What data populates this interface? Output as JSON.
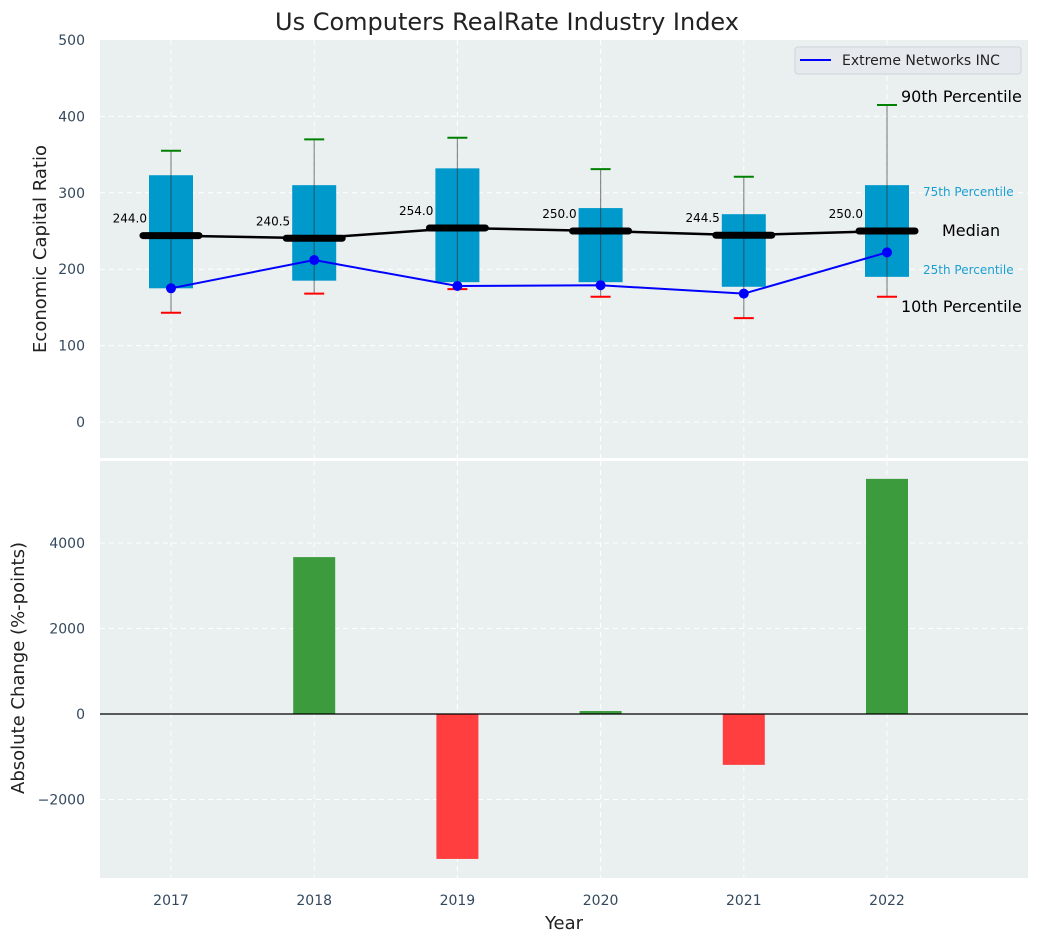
{
  "chart_data": [
    {
      "type": "box",
      "title": "Us Computers RealRate Industry Index",
      "xlabel": "",
      "ylabel": "Economic Capital Ratio",
      "ylim": [
        -50,
        500
      ],
      "yticks": [
        0,
        100,
        200,
        300,
        400,
        500
      ],
      "grid": true,
      "categories": [
        "2017",
        "2018",
        "2019",
        "2020",
        "2021",
        "2022"
      ],
      "percentiles": {
        "p90": [
          355,
          370,
          372,
          331,
          321,
          415
        ],
        "p75": [
          323,
          310,
          332,
          280,
          272,
          310
        ],
        "median": [
          244.0,
          240.5,
          254.0,
          250.0,
          244.5,
          250.0
        ],
        "p25": [
          175,
          185,
          183,
          183,
          177,
          190
        ],
        "p10": [
          143,
          168,
          174,
          164,
          136,
          164
        ]
      },
      "median_labels": [
        "244.0",
        "240.5",
        "254.0",
        "250.0",
        "244.5",
        "250.0"
      ],
      "series": [
        {
          "name": "Extreme Networks INC",
          "values": [
            175,
            212,
            178,
            179,
            168,
            222
          ],
          "color": "#0000ff"
        }
      ],
      "legend": {
        "position": "top-right",
        "entries": [
          "Extreme Networks INC"
        ]
      },
      "annotations": {
        "p90": "90th Percentile",
        "p75": "75th Percentile",
        "median": "Median",
        "p25": "25th Percentile",
        "p10": "10th Percentile"
      },
      "colors": {
        "box": "#0099cc",
        "median": "#000000",
        "p90_cap": "#008000",
        "p10_cap": "#ff0000",
        "background": "#eaeff0"
      }
    },
    {
      "type": "bar",
      "title": "",
      "xlabel": "Year",
      "ylabel": "Absolute Change (%-points)",
      "ylim": [
        -3800,
        5800
      ],
      "yticks": [
        -2000,
        0,
        2000,
        4000
      ],
      "grid": true,
      "categories": [
        "2017",
        "2018",
        "2019",
        "2020",
        "2021",
        "2022"
      ],
      "values": [
        0,
        3670,
        -3390,
        70,
        -1190,
        5500
      ],
      "colors": {
        "positive": "#3c9b3c",
        "negative": "#ff3f3f"
      }
    }
  ]
}
